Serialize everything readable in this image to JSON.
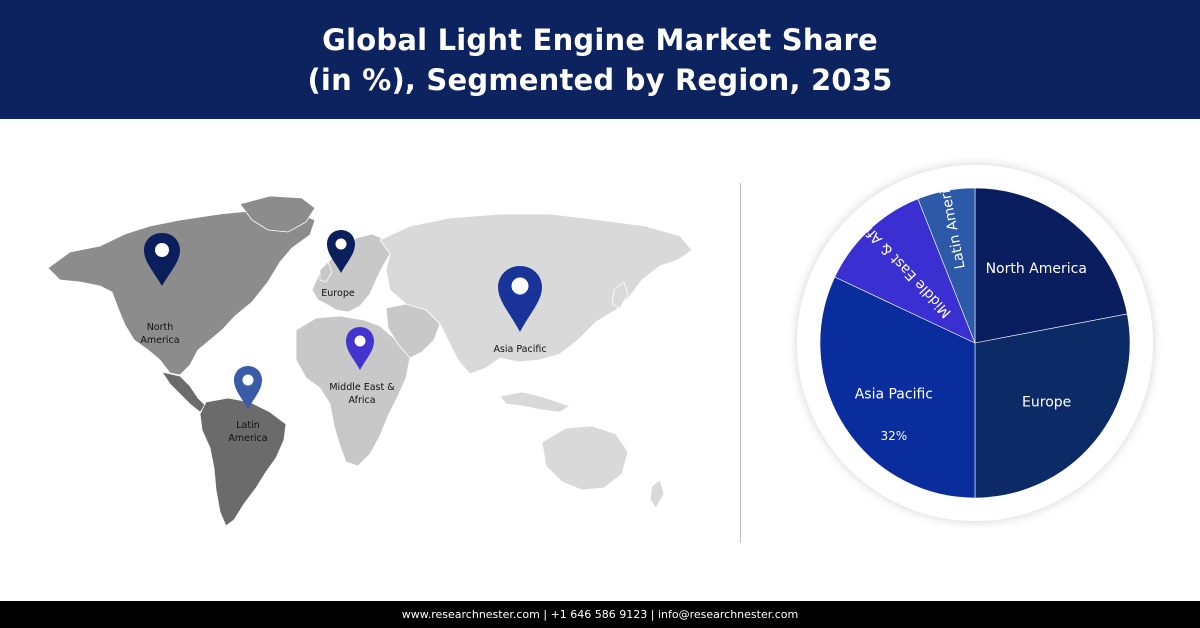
{
  "header": {
    "title_line1": "Global Light Engine Market Share",
    "title_line2": "(in %), Segmented by Region, 2035"
  },
  "map": {
    "markers": [
      {
        "id": "north-america",
        "label_lines": [
          "North",
          "America"
        ],
        "color": "#0b1f5c"
      },
      {
        "id": "europe",
        "label_lines": [
          "Europe"
        ],
        "color": "#0b1f5c"
      },
      {
        "id": "asia-pacific",
        "label_lines": [
          "Asia Pacific"
        ],
        "color": "#1a3399"
      },
      {
        "id": "middle-east-africa",
        "label_lines": [
          "Middle East &",
          "Africa"
        ],
        "color": "#4433cc"
      },
      {
        "id": "latin-america",
        "label_lines": [
          "Latin",
          "America"
        ],
        "color": "#3a5ba8"
      }
    ]
  },
  "chart_data": {
    "type": "pie",
    "title": "Global Light Engine Market Share (in %), Segmented by Region, 2035",
    "slices": [
      {
        "name": "North America",
        "value": 22,
        "color": "#0a1d5e",
        "value_label": ""
      },
      {
        "name": "Europe",
        "value": 28,
        "color": "#0c2b66",
        "value_label": ""
      },
      {
        "name": "Asia Pacific",
        "value": 32,
        "color": "#0a2d9e",
        "value_label": "32%"
      },
      {
        "name": "Middle East & Africa",
        "value": 12,
        "color": "#3a2fd0",
        "value_label": ""
      },
      {
        "name": "Latin America",
        "value": 6,
        "color": "#2d5aa8",
        "value_label": ""
      }
    ],
    "start_angle_deg": 0,
    "direction": "clockwise",
    "legend": "none"
  },
  "footer": {
    "text": "www.researchnester.com  | +1 646 586 9123 | info@researchnester.com"
  }
}
